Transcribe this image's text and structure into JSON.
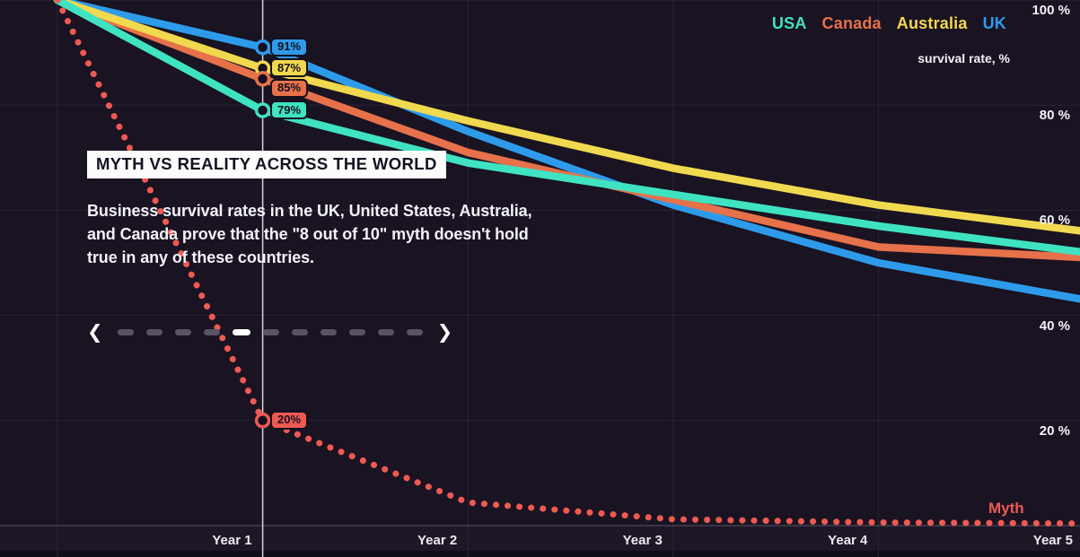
{
  "header": {
    "legend": [
      {
        "label": "USA",
        "color": "#3FE3C1"
      },
      {
        "label": "Canada",
        "color": "#E6714A"
      },
      {
        "label": "Australia",
        "color": "#F1D94F"
      },
      {
        "label": "UK",
        "color": "#2E9BEA"
      }
    ],
    "axis_caption": "survival rate, %"
  },
  "panel": {
    "title": "MYTH VS REALITY ACROSS THE WORLD",
    "body": "Business survival rates in the UK, United States, Australia,\nand Canada prove that the \"8 out of 10\" myth doesn't hold\ntrue in any of these countries."
  },
  "carousel": {
    "prev_icon": "❮",
    "next_icon": "❯",
    "total_dots": 11,
    "active_index": 4
  },
  "chart_data": {
    "type": "line",
    "title": "MYTH VS REALITY ACROSS THE WORLD",
    "xlabel": "",
    "ylabel": "survival rate, %",
    "ylim": [
      0,
      100
    ],
    "x_range_years": [
      0,
      5
    ],
    "grid": true,
    "legend_position": "top-right",
    "highlight_year": 1,
    "y_ticks": [
      {
        "value": 100,
        "label": "100 %"
      },
      {
        "value": 80,
        "label": "80 %"
      },
      {
        "value": 60,
        "label": "60 %"
      },
      {
        "value": 40,
        "label": "40 %"
      },
      {
        "value": 20,
        "label": "20 %"
      }
    ],
    "x_ticks": [
      {
        "value": 1,
        "label": "Year 1"
      },
      {
        "value": 2,
        "label": "Year 2"
      },
      {
        "value": 3,
        "label": "Year 3"
      },
      {
        "value": 4,
        "label": "Year 4"
      },
      {
        "value": 5,
        "label": "Year 5"
      }
    ],
    "x_years": [
      0,
      1,
      2,
      3,
      4,
      5
    ],
    "series": [
      {
        "name": "UK",
        "color": "#2E9BEA",
        "style": "solid",
        "values": [
          100,
          91,
          75,
          61,
          50,
          43
        ]
      },
      {
        "name": "Canada",
        "color": "#E6714A",
        "style": "solid",
        "values": [
          100,
          85,
          71,
          62,
          53,
          51
        ]
      },
      {
        "name": "Australia",
        "color": "#F1D94F",
        "style": "solid",
        "values": [
          100,
          87,
          77,
          68,
          61,
          56
        ]
      },
      {
        "name": "USA",
        "color": "#3FE3C1",
        "style": "solid",
        "values": [
          100,
          79,
          69,
          63,
          57,
          52
        ]
      },
      {
        "name": "Myth",
        "color": "#EE5A52",
        "style": "dotted",
        "values": [
          100,
          20,
          4.4,
          1.2,
          0.6,
          0.4
        ]
      }
    ],
    "myth_label": "Myth",
    "point_labels": [
      {
        "year": 1,
        "value": 91,
        "text": "91%",
        "color": "#2E9BEA",
        "series": "UK"
      },
      {
        "year": 1,
        "value": 87,
        "text": "87%",
        "color": "#F1D94F",
        "series": "Australia"
      },
      {
        "year": 1,
        "value": 85,
        "text": "85%",
        "color": "#E6714A",
        "series": "Canada"
      },
      {
        "year": 1,
        "value": 79,
        "text": "79%",
        "color": "#3FE3C1",
        "series": "USA"
      },
      {
        "year": 1,
        "value": 20,
        "text": "20%",
        "color": "#EE5A52",
        "series": "Myth"
      }
    ]
  },
  "colors": {
    "background": "#191322",
    "gridline": "#2a2537",
    "axis_line": "#4e4a5a",
    "highlight_line": "#e9e7ef",
    "dash_inactive": "#585365",
    "dash_active": "#ffffff",
    "marker_fill": "#161020"
  }
}
